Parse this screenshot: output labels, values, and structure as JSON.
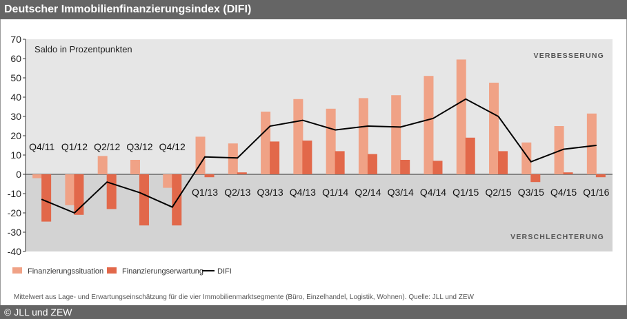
{
  "header": {
    "title": "Deutscher Immobilienfinanzierungsindex (DIFI)"
  },
  "footer": {
    "note": "Mittelwert aus Lage- und Erwartungseinschätzung für die vier Immobilienmarktsegmente (Büro, Einzelhandel, Logistik, Wohnen). Quelle: JLL und ZEW",
    "copyright": "© JLL und ZEW"
  },
  "colors": {
    "situation": "#F0A286",
    "expectation": "#E2684A",
    "difi": "#000000",
    "upper_bg": "#E6E6E6",
    "lower_bg": "#D3D3D3",
    "header_bg": "#656565"
  },
  "chart_data": {
    "type": "bar",
    "title": "Deutscher Immobilienfinanzierungsindex (DIFI)",
    "ylabel": "Saldo in Prozentpunkten",
    "ylim": [
      -40,
      70
    ],
    "yticks": [
      -40,
      -30,
      -20,
      -10,
      0,
      10,
      20,
      30,
      40,
      50,
      60,
      70
    ],
    "ytick_labels": [
      "-40",
      "-30",
      "-20",
      "-10",
      "0",
      "10",
      "20",
      "30",
      "40",
      "50",
      "60",
      "70"
    ],
    "region_labels": {
      "upper": "VERBESSERUNG",
      "lower": "VERSCHLECHTERUNG"
    },
    "categories": [
      "Q4/11",
      "Q1/12",
      "Q2/12",
      "Q3/12",
      "Q4/12",
      "Q1/13",
      "Q2/13",
      "Q3/13",
      "Q4/13",
      "Q1/14",
      "Q2/14",
      "Q3/14",
      "Q4/14",
      "Q1/15",
      "Q2/15",
      "Q3/15",
      "Q4/15",
      "Q1/16"
    ],
    "series": [
      {
        "name": "Finanzierungssituation",
        "kind": "bar",
        "values": [
          -2,
          -16,
          9.5,
          7.5,
          -7,
          19.5,
          16,
          32.5,
          39,
          34,
          39.5,
          41,
          51,
          59.5,
          47.5,
          16.5,
          25,
          31.5
        ]
      },
      {
        "name": "Finanzierungserwartung",
        "kind": "bar",
        "values": [
          -24.5,
          -21,
          -18,
          -26.5,
          -26.5,
          -1.5,
          1,
          17,
          17.5,
          12,
          10.5,
          7.5,
          7,
          19,
          12,
          -4,
          1,
          -1.5
        ]
      },
      {
        "name": "DIFI",
        "kind": "line",
        "values": [
          -13,
          -20,
          -4,
          -9.5,
          -17,
          9,
          8.5,
          25,
          28,
          23,
          25,
          24.5,
          29,
          39,
          30,
          6.5,
          13,
          15
        ]
      }
    ],
    "legend": [
      "Finanzierungssituation",
      "Finanzierungserwartung",
      "DIFI"
    ],
    "legend_position": "bottom-left"
  }
}
